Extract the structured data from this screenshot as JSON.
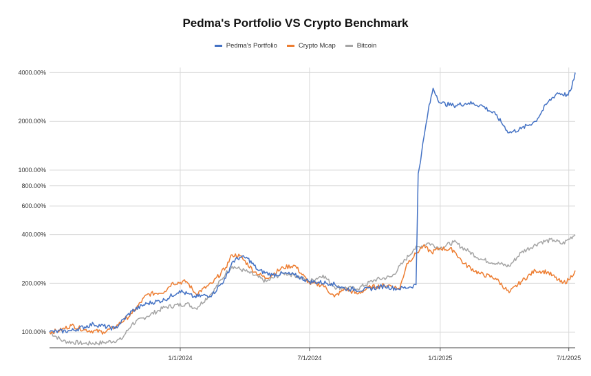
{
  "chart_data": {
    "type": "line",
    "title": "Pedma's Portfolio VS Crypto Benchmark",
    "y_scale": "log",
    "ylim": [
      80,
      4300
    ],
    "xlim": [
      "2023-07-01",
      "2025-07-10"
    ],
    "y_ticks": [
      {
        "value": 100,
        "label": "100.00%"
      },
      {
        "value": 200,
        "label": "200.00%"
      },
      {
        "value": 400,
        "label": "400.00%"
      },
      {
        "value": 600,
        "label": "600.00%"
      },
      {
        "value": 800,
        "label": "800.00%"
      },
      {
        "value": 1000,
        "label": "1000.00%"
      },
      {
        "value": 2000,
        "label": "2000.00%"
      },
      {
        "value": 4000,
        "label": "4000.00%"
      }
    ],
    "x_ticks": [
      {
        "date": "2024-01-01",
        "label": "1/1/2024"
      },
      {
        "date": "2024-07-01",
        "label": "7/1/2024"
      },
      {
        "date": "2025-01-01",
        "label": "1/1/2025"
      },
      {
        "date": "2025-07-01",
        "label": "7/1/2025"
      }
    ],
    "series": [
      {
        "name": "Pedma's Portfolio",
        "color": "#4472C4",
        "points": [
          [
            "2023-07-01",
            100
          ],
          [
            "2023-08-01",
            102
          ],
          [
            "2023-09-01",
            112
          ],
          [
            "2023-10-01",
            105
          ],
          [
            "2023-10-25",
            135
          ],
          [
            "2023-11-15",
            150
          ],
          [
            "2023-12-10",
            158
          ],
          [
            "2023-12-31",
            180
          ],
          [
            "2024-01-20",
            165
          ],
          [
            "2024-02-15",
            170
          ],
          [
            "2024-03-05",
            215
          ],
          [
            "2024-03-14",
            270
          ],
          [
            "2024-03-25",
            290
          ],
          [
            "2024-04-05",
            285
          ],
          [
            "2024-04-20",
            240
          ],
          [
            "2024-05-10",
            225
          ],
          [
            "2024-05-25",
            230
          ],
          [
            "2024-06-10",
            225
          ],
          [
            "2024-07-01",
            205
          ],
          [
            "2024-08-01",
            200
          ],
          [
            "2024-08-20",
            185
          ],
          [
            "2024-09-15",
            182
          ],
          [
            "2024-10-15",
            192
          ],
          [
            "2024-11-01",
            185
          ],
          [
            "2024-11-20",
            190
          ],
          [
            "2024-11-28",
            196
          ],
          [
            "2024-12-01",
            950
          ],
          [
            "2024-12-06",
            1300
          ],
          [
            "2024-12-15",
            2300
          ],
          [
            "2024-12-22",
            3200
          ],
          [
            "2025-01-01",
            2600
          ],
          [
            "2025-01-20",
            2500
          ],
          [
            "2025-02-10",
            2600
          ],
          [
            "2025-03-01",
            2500
          ],
          [
            "2025-03-20",
            2200
          ],
          [
            "2025-04-08",
            1700
          ],
          [
            "2025-04-25",
            1800
          ],
          [
            "2025-05-15",
            2000
          ],
          [
            "2025-06-01",
            2600
          ],
          [
            "2025-06-15",
            3000
          ],
          [
            "2025-06-30",
            2900
          ],
          [
            "2025-07-05",
            3200
          ],
          [
            "2025-07-10",
            4000
          ]
        ]
      },
      {
        "name": "Crypto Mcap",
        "color": "#ED7D31",
        "points": [
          [
            "2023-07-01",
            100
          ],
          [
            "2023-07-15",
            102
          ],
          [
            "2023-08-01",
            110
          ],
          [
            "2023-08-20",
            103
          ],
          [
            "2023-09-15",
            100
          ],
          [
            "2023-10-01",
            107
          ],
          [
            "2023-10-25",
            130
          ],
          [
            "2023-11-15",
            170
          ],
          [
            "2023-12-10",
            178
          ],
          [
            "2023-12-20",
            200
          ],
          [
            "2024-01-10",
            205
          ],
          [
            "2024-01-23",
            172
          ],
          [
            "2024-02-15",
            200
          ],
          [
            "2024-03-05",
            250
          ],
          [
            "2024-03-14",
            300
          ],
          [
            "2024-03-25",
            295
          ],
          [
            "2024-04-15",
            235
          ],
          [
            "2024-05-01",
            215
          ],
          [
            "2024-05-25",
            250
          ],
          [
            "2024-06-10",
            258
          ],
          [
            "2024-07-01",
            200
          ],
          [
            "2024-07-20",
            195
          ],
          [
            "2024-08-05",
            165
          ],
          [
            "2024-08-20",
            185
          ],
          [
            "2024-09-06",
            172
          ],
          [
            "2024-09-25",
            190
          ],
          [
            "2024-10-20",
            195
          ],
          [
            "2024-11-05",
            185
          ],
          [
            "2024-11-15",
            265
          ],
          [
            "2024-11-28",
            305
          ],
          [
            "2024-12-08",
            340
          ],
          [
            "2024-12-20",
            310
          ],
          [
            "2025-01-01",
            330
          ],
          [
            "2025-01-20",
            320
          ],
          [
            "2025-02-03",
            265
          ],
          [
            "2025-02-25",
            230
          ],
          [
            "2025-03-20",
            215
          ],
          [
            "2025-04-08",
            175
          ],
          [
            "2025-04-25",
            205
          ],
          [
            "2025-05-15",
            240
          ],
          [
            "2025-06-01",
            235
          ],
          [
            "2025-06-22",
            200
          ],
          [
            "2025-07-01",
            210
          ],
          [
            "2025-07-10",
            240
          ]
        ]
      },
      {
        "name": "Bitcoin",
        "color": "#A5A5A5",
        "points": [
          [
            "2023-07-01",
            100
          ],
          [
            "2023-07-20",
            88
          ],
          [
            "2023-08-20",
            85
          ],
          [
            "2023-09-15",
            86
          ],
          [
            "2023-10-10",
            90
          ],
          [
            "2023-10-25",
            112
          ],
          [
            "2023-11-15",
            125
          ],
          [
            "2023-12-10",
            142
          ],
          [
            "2024-01-10",
            150
          ],
          [
            "2024-01-23",
            140
          ],
          [
            "2024-02-15",
            175
          ],
          [
            "2024-03-05",
            230
          ],
          [
            "2024-03-14",
            255
          ],
          [
            "2024-04-05",
            235
          ],
          [
            "2024-05-01",
            205
          ],
          [
            "2024-05-25",
            232
          ],
          [
            "2024-06-10",
            225
          ],
          [
            "2024-07-01",
            205
          ],
          [
            "2024-07-20",
            225
          ],
          [
            "2024-08-05",
            190
          ],
          [
            "2024-09-06",
            185
          ],
          [
            "2024-10-01",
            210
          ],
          [
            "2024-10-25",
            220
          ],
          [
            "2024-11-10",
            270
          ],
          [
            "2024-11-25",
            325
          ],
          [
            "2024-12-15",
            355
          ],
          [
            "2025-01-01",
            330
          ],
          [
            "2025-01-20",
            360
          ],
          [
            "2025-02-10",
            315
          ],
          [
            "2025-03-01",
            280
          ],
          [
            "2025-04-08",
            255
          ],
          [
            "2025-04-25",
            310
          ],
          [
            "2025-05-22",
            360
          ],
          [
            "2025-06-10",
            370
          ],
          [
            "2025-06-22",
            350
          ],
          [
            "2025-07-01",
            375
          ],
          [
            "2025-07-10",
            400
          ]
        ]
      }
    ]
  }
}
